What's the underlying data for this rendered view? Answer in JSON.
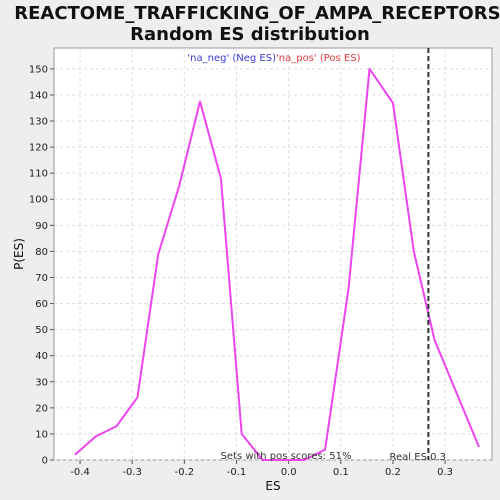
{
  "chart_data": {
    "type": "line",
    "title_line1": "REACTOME_TRAFFICKING_OF_AMPA_RECEPTORS:",
    "title_line2": "Random ES distribution",
    "xlabel": "ES",
    "ylabel": "P(ES)",
    "xlim": [
      -0.45,
      0.39
    ],
    "ylim": [
      0,
      158
    ],
    "xticks": [
      -0.4,
      -0.3,
      -0.2,
      -0.1,
      0.0,
      0.1,
      0.2,
      0.3
    ],
    "xtick_labels": [
      "-0.4",
      "-0.3",
      "-0.2",
      "-0.1",
      "0.0",
      "0.1",
      "0.2",
      "0.3"
    ],
    "yticks": [
      0,
      10,
      20,
      30,
      40,
      50,
      60,
      70,
      80,
      90,
      100,
      110,
      120,
      130,
      140,
      150
    ],
    "ytick_labels": [
      "0",
      "10",
      "20",
      "30",
      "40",
      "50",
      "60",
      "70",
      "80",
      "90",
      "100",
      "110",
      "120",
      "130",
      "140",
      "150"
    ],
    "grid": true,
    "legend_position": "top-center",
    "legend": [
      {
        "label": "'na_neg' (Neg ES)",
        "color": "#3b3bd6"
      },
      {
        "label": "'na_pos' (Pos ES)",
        "color": "#e03b3b"
      }
    ],
    "series": [
      {
        "color": "#ee44ee",
        "x": [
          -0.41,
          -0.37,
          -0.33,
          -0.29,
          -0.25,
          -0.21,
          -0.17,
          -0.13,
          -0.09,
          -0.05,
          -0.01,
          0.03,
          0.07,
          0.115,
          0.155,
          0.2,
          0.24,
          0.28,
          0.365
        ],
        "y": [
          2,
          9,
          13,
          24,
          79,
          105,
          137.5,
          108,
          10,
          0,
          0,
          0,
          4,
          66,
          150,
          137,
          80,
          46,
          5
        ]
      }
    ],
    "real_es": 0.268,
    "real_es_label": "Real ES 0.3",
    "sets_label": "Sets with pos scores: 51%"
  }
}
